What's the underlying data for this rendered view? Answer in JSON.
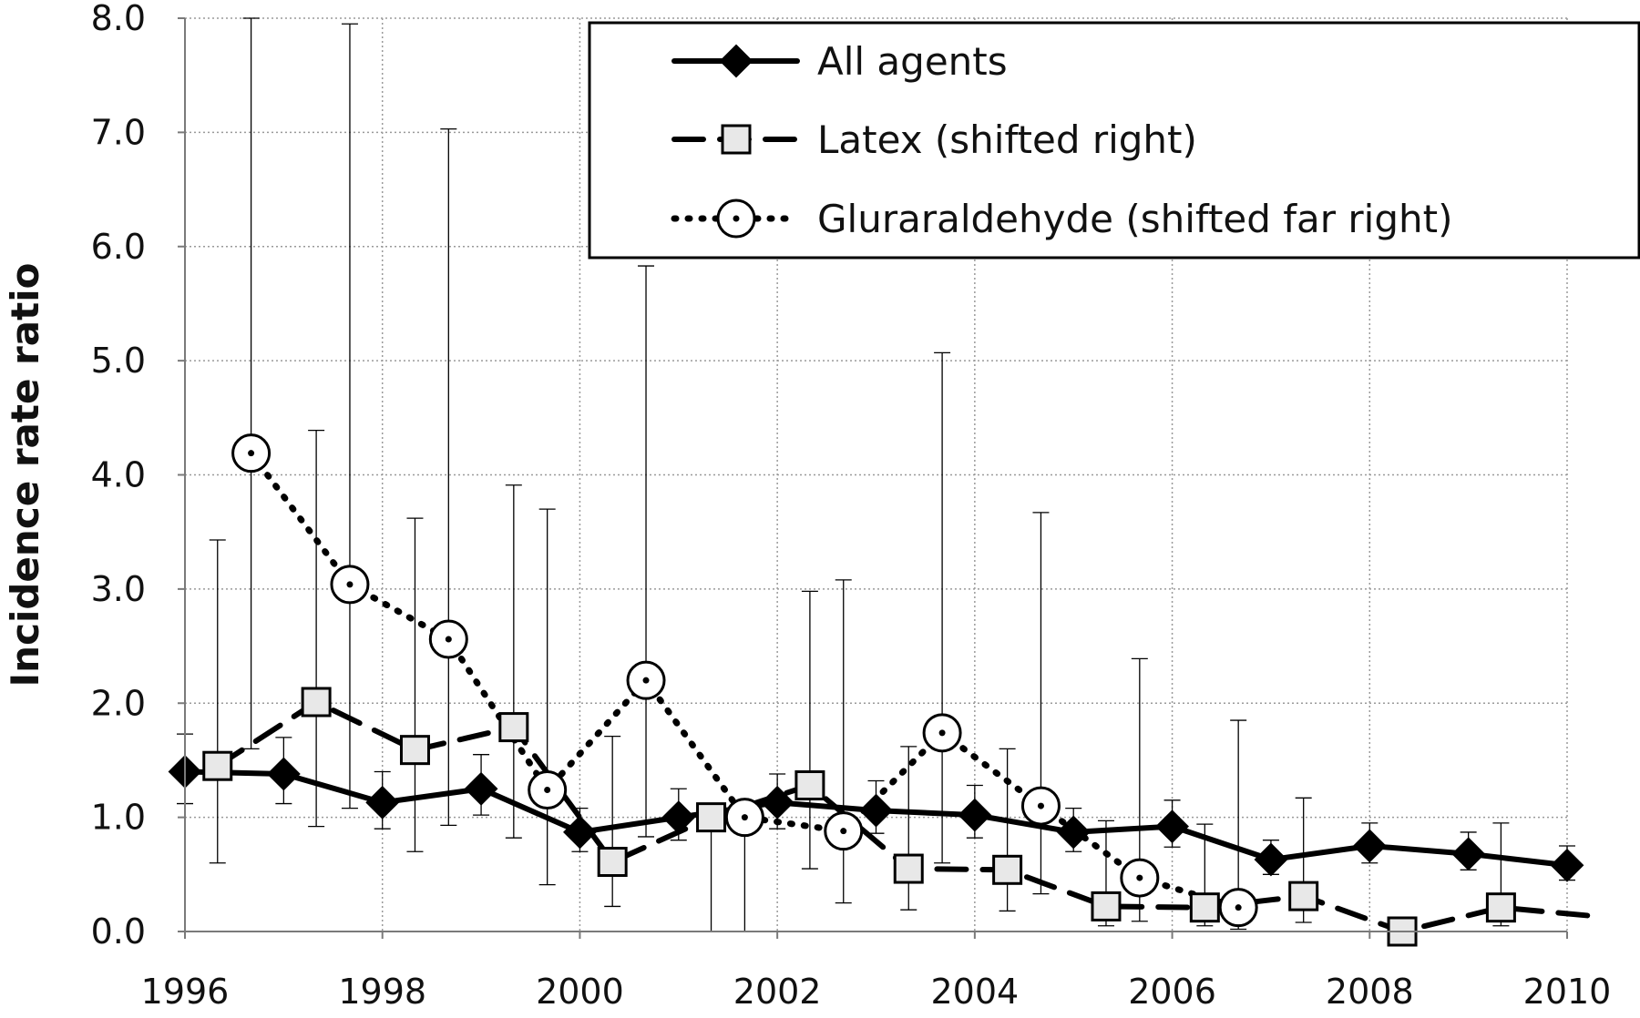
{
  "chart_data": {
    "type": "line",
    "ylabel": "Incidence rate ratio",
    "xlabel": "",
    "xlim": [
      1996,
      2010
    ],
    "ylim": [
      0,
      8
    ],
    "x_ticks": [
      "1996",
      "1998",
      "2000",
      "2002",
      "2004",
      "2006",
      "2008",
      "2010"
    ],
    "y_ticks": [
      "0.0",
      "1.0",
      "2.0",
      "3.0",
      "4.0",
      "5.0",
      "6.0",
      "7.0",
      "8.0"
    ],
    "grid": true,
    "legend_position": "top-right",
    "series": [
      {
        "name": "All agents",
        "style": "solid",
        "marker": "diamond",
        "points": [
          {
            "x": 1996.0,
            "y": 1.4,
            "lo": 1.12,
            "hi": 1.73
          },
          {
            "x": 1997.0,
            "y": 1.38,
            "lo": 1.12,
            "hi": 1.7
          },
          {
            "x": 1998.0,
            "y": 1.13,
            "lo": 0.9,
            "hi": 1.4
          },
          {
            "x": 1999.0,
            "y": 1.25,
            "lo": 1.02,
            "hi": 1.55
          },
          {
            "x": 2000.0,
            "y": 0.87,
            "lo": 0.7,
            "hi": 1.08
          },
          {
            "x": 2001.0,
            "y": 1.0,
            "lo": 0.8,
            "hi": 1.25
          },
          {
            "x": 2002.0,
            "y": 1.13,
            "lo": 0.9,
            "hi": 1.38
          },
          {
            "x": 2003.0,
            "y": 1.06,
            "lo": 0.86,
            "hi": 1.32
          },
          {
            "x": 2004.0,
            "y": 1.02,
            "lo": 0.82,
            "hi": 1.28
          },
          {
            "x": 2005.0,
            "y": 0.87,
            "lo": 0.7,
            "hi": 1.08
          },
          {
            "x": 2006.0,
            "y": 0.92,
            "lo": 0.74,
            "hi": 1.15
          },
          {
            "x": 2007.0,
            "y": 0.63,
            "lo": 0.5,
            "hi": 0.8
          },
          {
            "x": 2008.0,
            "y": 0.75,
            "lo": 0.6,
            "hi": 0.95
          },
          {
            "x": 2009.0,
            "y": 0.68,
            "lo": 0.54,
            "hi": 0.87
          },
          {
            "x": 2010.0,
            "y": 0.58,
            "lo": 0.45,
            "hi": 0.75
          }
        ]
      },
      {
        "name": "Latex (shifted right)",
        "style": "dashed",
        "marker": "square",
        "points": [
          {
            "x": 1996.33,
            "y": 1.45,
            "lo": 0.6,
            "hi": 3.43
          },
          {
            "x": 1997.33,
            "y": 2.01,
            "lo": 0.92,
            "hi": 4.39
          },
          {
            "x": 1998.33,
            "y": 1.59,
            "lo": 0.7,
            "hi": 3.62
          },
          {
            "x": 1999.33,
            "y": 1.79,
            "lo": 0.82,
            "hi": 3.91
          },
          {
            "x": 2000.33,
            "y": 0.61,
            "lo": 0.22,
            "hi": 1.71
          },
          {
            "x": 2001.33,
            "y": 1.0,
            "lo": 0.0,
            "hi": 1.0
          },
          {
            "x": 2002.33,
            "y": 1.28,
            "lo": 0.55,
            "hi": 2.98
          },
          {
            "x": 2003.33,
            "y": 0.55,
            "lo": 0.19,
            "hi": 1.62
          },
          {
            "x": 2004.33,
            "y": 0.54,
            "lo": 0.18,
            "hi": 1.6
          },
          {
            "x": 2005.33,
            "y": 0.22,
            "lo": 0.05,
            "hi": 0.97
          },
          {
            "x": 2006.33,
            "y": 0.21,
            "lo": 0.05,
            "hi": 0.94
          },
          {
            "x": 2007.33,
            "y": 0.31,
            "lo": 0.08,
            "hi": 1.17
          },
          {
            "x": 2008.33,
            "y": 0.0,
            "lo": 0.0,
            "hi": 0.0
          },
          {
            "x": 2009.33,
            "y": 0.21,
            "lo": 0.05,
            "hi": 0.95
          },
          {
            "x": 2010.33,
            "y": 0.13,
            "lo": 0.13,
            "hi": 0.13
          }
        ]
      },
      {
        "name": "Gluraraldehyde (shifted far right)",
        "style": "dotted",
        "marker": "circle-dot",
        "points": [
          {
            "x": 1996.67,
            "y": 4.19,
            "lo": 1.6,
            "hi": 8.0
          },
          {
            "x": 1997.67,
            "y": 3.04,
            "lo": 1.08,
            "hi": 7.95
          },
          {
            "x": 1998.67,
            "y": 2.56,
            "lo": 0.93,
            "hi": 7.03
          },
          {
            "x": 1999.67,
            "y": 1.24,
            "lo": 0.41,
            "hi": 3.7
          },
          {
            "x": 2000.67,
            "y": 2.2,
            "lo": 0.83,
            "hi": 5.83
          },
          {
            "x": 2001.67,
            "y": 1.0,
            "lo": 0.0,
            "hi": 1.0
          },
          {
            "x": 2002.67,
            "y": 0.88,
            "lo": 0.25,
            "hi": 3.08
          },
          {
            "x": 2003.67,
            "y": 1.74,
            "lo": 0.6,
            "hi": 5.07
          },
          {
            "x": 2004.67,
            "y": 1.1,
            "lo": 0.33,
            "hi": 3.67
          },
          {
            "x": 2005.67,
            "y": 0.47,
            "lo": 0.09,
            "hi": 2.39
          },
          {
            "x": 2006.67,
            "y": 0.21,
            "lo": 0.02,
            "hi": 1.85
          }
        ]
      }
    ]
  }
}
